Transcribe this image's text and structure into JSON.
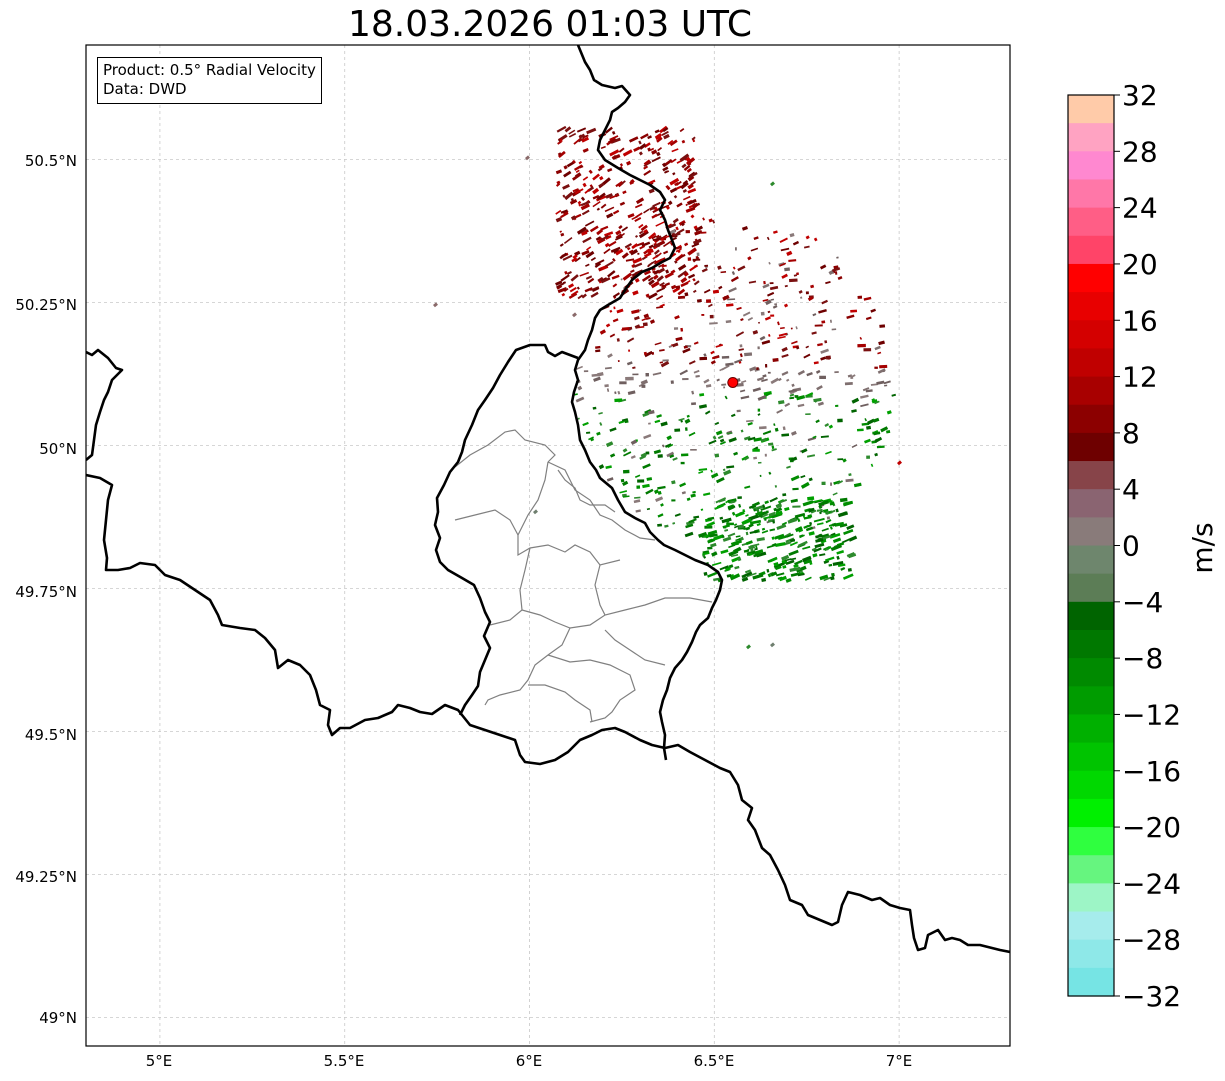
{
  "title": "18.03.2026 01:03 UTC",
  "info_box": {
    "product_line": "Product: 0.5° Radial Velocity",
    "data_line": "Data: DWD"
  },
  "map": {
    "type": "radar-velocity-map",
    "lon_range": [
      4.8,
      7.3
    ],
    "lat_range": [
      48.95,
      50.7
    ],
    "lon_ticks": [
      {
        "value": 5.0,
        "label": "5°E"
      },
      {
        "value": 5.5,
        "label": "5.5°E"
      },
      {
        "value": 6.0,
        "label": "6°E"
      },
      {
        "value": 6.5,
        "label": "6.5°E"
      },
      {
        "value": 7.0,
        "label": "7°E"
      }
    ],
    "lat_ticks": [
      {
        "value": 50.5,
        "label": "50.5°N"
      },
      {
        "value": 50.25,
        "label": "50.25°N"
      },
      {
        "value": 50.0,
        "label": "50°N"
      },
      {
        "value": 49.75,
        "label": "49.75°N"
      },
      {
        "value": 49.5,
        "label": "49.5°N"
      },
      {
        "value": 49.25,
        "label": "49.25°N"
      },
      {
        "value": 49.0,
        "label": "49°N"
      }
    ],
    "grid": true,
    "radar_site": {
      "lon": 6.55,
      "lat": 50.11,
      "color": "#ff0000"
    }
  },
  "colorbar": {
    "unit": "m/s",
    "min": -32,
    "max": 32,
    "tick_values": [
      32,
      28,
      24,
      20,
      16,
      12,
      8,
      4,
      0,
      -4,
      -8,
      -12,
      -16,
      -20,
      -24,
      -28,
      -32
    ],
    "tick_labels": [
      "32",
      "28",
      "24",
      "20",
      "16",
      "12",
      "8",
      "4",
      "0",
      "−4",
      "−8",
      "−12",
      "−16",
      "−20",
      "−24",
      "−28",
      "−32"
    ],
    "bands_top_to_bottom": [
      "#ffcba9",
      "#ffa3c2",
      "#ff88d0",
      "#ff77a8",
      "#ff5e86",
      "#ff4468",
      "#ff0000",
      "#e80000",
      "#d40000",
      "#c00000",
      "#a80000",
      "#8c0000",
      "#6e0000",
      "#874449",
      "#8a6471",
      "#897b7a",
      "#6e866d",
      "#5c7d56",
      "#006400",
      "#007800",
      "#008a00",
      "#009c00",
      "#00b000",
      "#00c400",
      "#00d800",
      "#00f000",
      "#2fff3f",
      "#66f57f",
      "#9df5c6",
      "#a6ecec",
      "#8ee8e8",
      "#76e4e4"
    ]
  }
}
